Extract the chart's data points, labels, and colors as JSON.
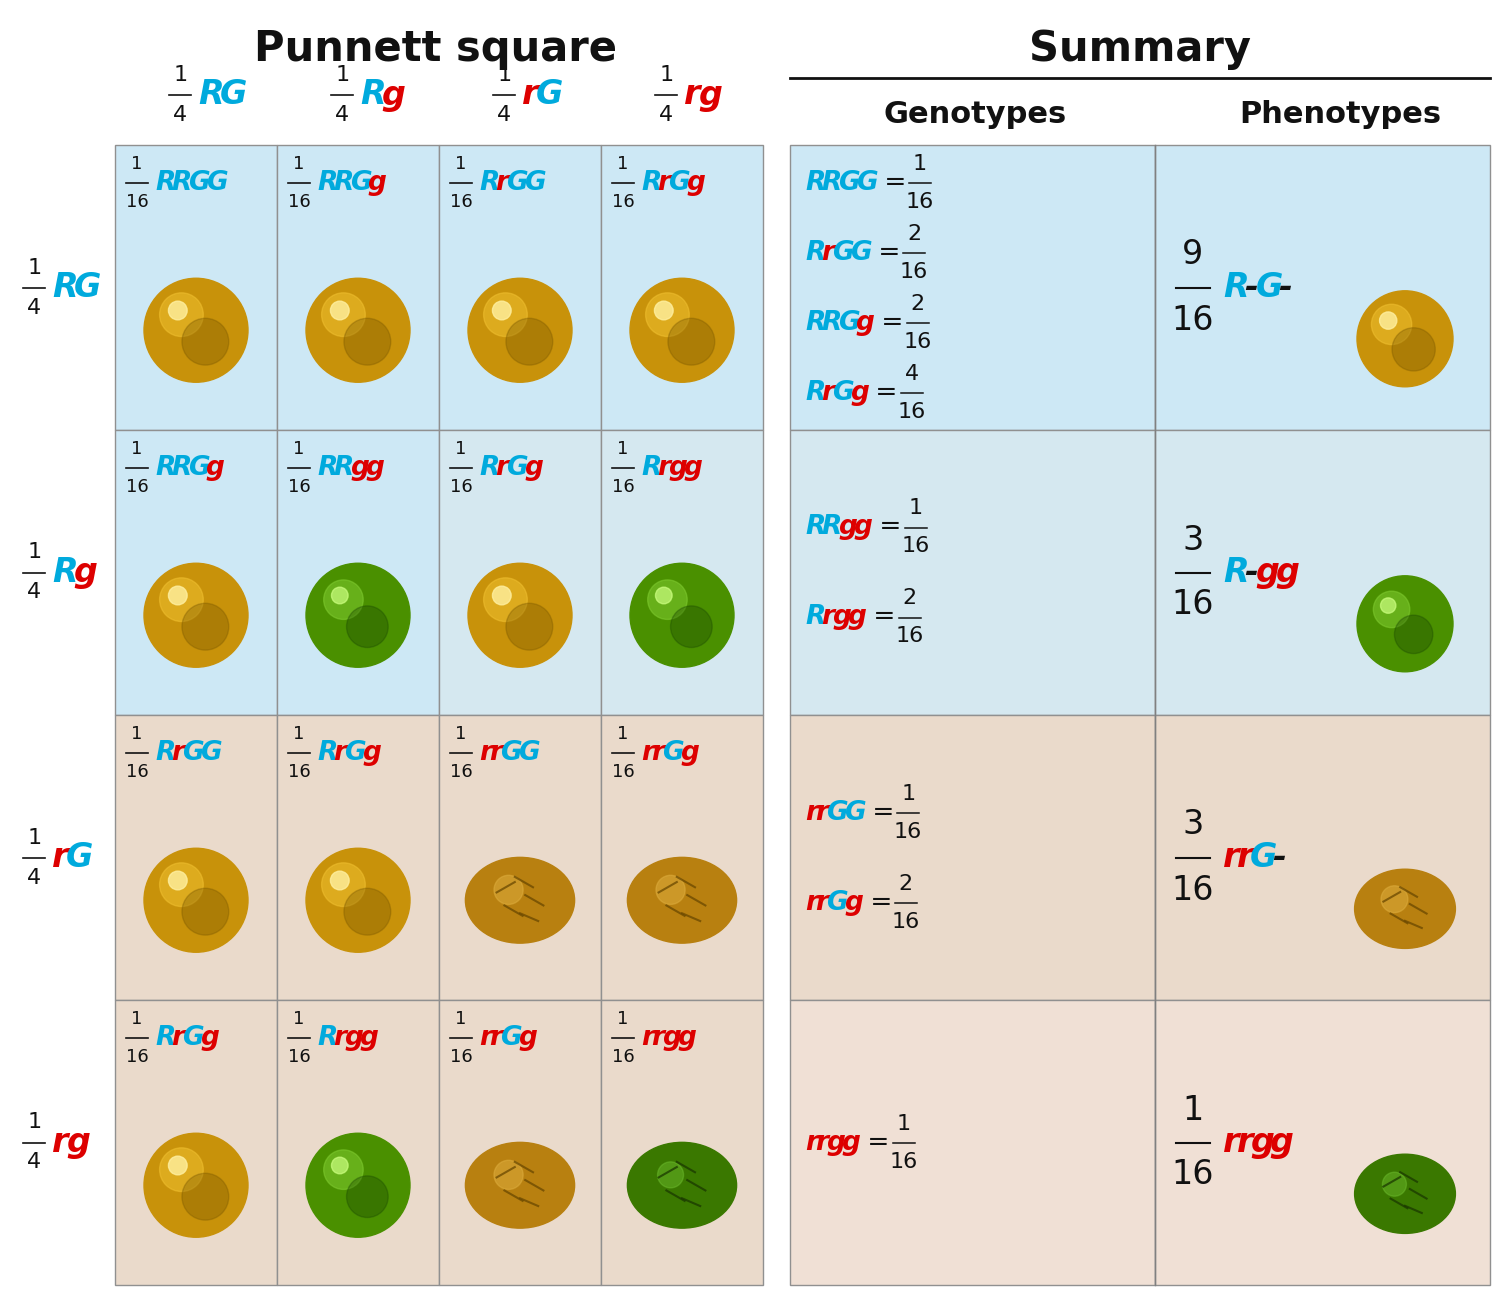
{
  "title_punnett": "Punnett square",
  "title_summary": "Summary",
  "BLUE": "#00aadd",
  "RED": "#dd0000",
  "BLACK": "#111111",
  "cell_bg_blue1": "#cde8f4",
  "cell_bg_blue2": "#d8e8f0",
  "cell_bg_brown1": "#eedad0",
  "cell_bg_brown2": "#f0e0d8",
  "grid_color": "#999999",
  "col_headers": [
    [
      [
        "R",
        "B"
      ],
      [
        "G",
        "B"
      ]
    ],
    [
      [
        "R",
        "B"
      ],
      [
        "g",
        "R"
      ]
    ],
    [
      [
        "r",
        "R"
      ],
      [
        "G",
        "B"
      ]
    ],
    [
      [
        "r",
        "R"
      ],
      [
        "g",
        "R"
      ]
    ]
  ],
  "row_headers": [
    [
      [
        "R",
        "B"
      ],
      [
        "G",
        "B"
      ]
    ],
    [
      [
        "R",
        "B"
      ],
      [
        "g",
        "R"
      ]
    ],
    [
      [
        "r",
        "R"
      ],
      [
        "G",
        "B"
      ]
    ],
    [
      [
        "r",
        "R"
      ],
      [
        "g",
        "R"
      ]
    ]
  ],
  "cells": [
    [
      {
        "geno": [
          [
            "R",
            "B"
          ],
          [
            "R",
            "B"
          ],
          [
            "G",
            "B"
          ],
          [
            "G",
            "B"
          ]
        ],
        "ball": "gold_round"
      },
      {
        "geno": [
          [
            "R",
            "B"
          ],
          [
            "R",
            "B"
          ],
          [
            "G",
            "B"
          ],
          [
            "g",
            "R"
          ]
        ],
        "ball": "gold_round"
      },
      {
        "geno": [
          [
            "R",
            "B"
          ],
          [
            "r",
            "R"
          ],
          [
            "G",
            "B"
          ],
          [
            "G",
            "B"
          ]
        ],
        "ball": "gold_round"
      },
      {
        "geno": [
          [
            "R",
            "B"
          ],
          [
            "r",
            "R"
          ],
          [
            "G",
            "B"
          ],
          [
            "g",
            "R"
          ]
        ],
        "ball": "gold_round"
      }
    ],
    [
      {
        "geno": [
          [
            "R",
            "B"
          ],
          [
            "R",
            "B"
          ],
          [
            "G",
            "B"
          ],
          [
            "g",
            "R"
          ]
        ],
        "ball": "gold_round"
      },
      {
        "geno": [
          [
            "R",
            "B"
          ],
          [
            "R",
            "B"
          ],
          [
            "g",
            "R"
          ],
          [
            "g",
            "R"
          ]
        ],
        "ball": "green_round"
      },
      {
        "geno": [
          [
            "R",
            "B"
          ],
          [
            "r",
            "R"
          ],
          [
            "G",
            "B"
          ],
          [
            "g",
            "R"
          ]
        ],
        "ball": "gold_round"
      },
      {
        "geno": [
          [
            "R",
            "B"
          ],
          [
            "r",
            "R"
          ],
          [
            "g",
            "R"
          ],
          [
            "g",
            "R"
          ]
        ],
        "ball": "green_round"
      }
    ],
    [
      {
        "geno": [
          [
            "R",
            "B"
          ],
          [
            "r",
            "R"
          ],
          [
            "G",
            "B"
          ],
          [
            "G",
            "B"
          ]
        ],
        "ball": "gold_round"
      },
      {
        "geno": [
          [
            "R",
            "B"
          ],
          [
            "r",
            "R"
          ],
          [
            "G",
            "B"
          ],
          [
            "g",
            "R"
          ]
        ],
        "ball": "gold_round"
      },
      {
        "geno": [
          [
            "r",
            "R"
          ],
          [
            "r",
            "R"
          ],
          [
            "G",
            "B"
          ],
          [
            "G",
            "B"
          ]
        ],
        "ball": "gold_wrinkled"
      },
      {
        "geno": [
          [
            "r",
            "R"
          ],
          [
            "r",
            "R"
          ],
          [
            "G",
            "B"
          ],
          [
            "g",
            "R"
          ]
        ],
        "ball": "gold_wrinkled"
      }
    ],
    [
      {
        "geno": [
          [
            "R",
            "B"
          ],
          [
            "r",
            "R"
          ],
          [
            "G",
            "B"
          ],
          [
            "g",
            "R"
          ]
        ],
        "ball": "gold_round"
      },
      {
        "geno": [
          [
            "R",
            "B"
          ],
          [
            "r",
            "R"
          ],
          [
            "g",
            "R"
          ],
          [
            "g",
            "R"
          ]
        ],
        "ball": "green_round"
      },
      {
        "geno": [
          [
            "r",
            "R"
          ],
          [
            "r",
            "R"
          ],
          [
            "G",
            "B"
          ],
          [
            "g",
            "R"
          ]
        ],
        "ball": "gold_wrinkled"
      },
      {
        "geno": [
          [
            "r",
            "R"
          ],
          [
            "r",
            "R"
          ],
          [
            "g",
            "R"
          ],
          [
            "g",
            "R"
          ]
        ],
        "ball": "green_wrinkled"
      }
    ]
  ],
  "sum_geno": [
    [
      {
        "geno": [
          [
            "R",
            "B"
          ],
          [
            "R",
            "B"
          ],
          [
            "G",
            "B"
          ],
          [
            "G",
            "B"
          ]
        ],
        "num": "1",
        "den": "16"
      },
      {
        "geno": [
          [
            "R",
            "B"
          ],
          [
            "r",
            "R"
          ],
          [
            "G",
            "B"
          ],
          [
            "G",
            "B"
          ]
        ],
        "num": "2",
        "den": "16"
      },
      {
        "geno": [
          [
            "R",
            "B"
          ],
          [
            "R",
            "B"
          ],
          [
            "G",
            "B"
          ],
          [
            "g",
            "R"
          ]
        ],
        "num": "2",
        "den": "16"
      },
      {
        "geno": [
          [
            "R",
            "B"
          ],
          [
            "r",
            "R"
          ],
          [
            "G",
            "B"
          ],
          [
            "g",
            "R"
          ]
        ],
        "num": "4",
        "den": "16"
      }
    ],
    [
      {
        "geno": [
          [
            "R",
            "B"
          ],
          [
            "R",
            "B"
          ],
          [
            "g",
            "R"
          ],
          [
            "g",
            "R"
          ]
        ],
        "num": "1",
        "den": "16"
      },
      {
        "geno": [
          [
            "R",
            "B"
          ],
          [
            "r",
            "R"
          ],
          [
            "g",
            "R"
          ],
          [
            "g",
            "R"
          ]
        ],
        "num": "2",
        "den": "16"
      }
    ],
    [
      {
        "geno": [
          [
            "r",
            "R"
          ],
          [
            "r",
            "R"
          ],
          [
            "G",
            "B"
          ],
          [
            "G",
            "B"
          ]
        ],
        "num": "1",
        "den": "16"
      },
      {
        "geno": [
          [
            "r",
            "R"
          ],
          [
            "r",
            "R"
          ],
          [
            "G",
            "B"
          ],
          [
            "g",
            "R"
          ]
        ],
        "num": "2",
        "den": "16"
      }
    ],
    [
      {
        "geno": [
          [
            "r",
            "R"
          ],
          [
            "r",
            "R"
          ],
          [
            "g",
            "R"
          ],
          [
            "g",
            "R"
          ]
        ],
        "num": "1",
        "den": "16"
      }
    ]
  ],
  "sum_pheno": [
    {
      "chars": [
        [
          "R",
          "B"
        ],
        [
          "-",
          "K"
        ],
        [
          "G",
          "B"
        ],
        [
          "-",
          "K"
        ]
      ],
      "num": "9",
      "den": "16",
      "ball": "gold_round"
    },
    {
      "chars": [
        [
          "R",
          "B"
        ],
        [
          "-",
          "K"
        ],
        [
          "g",
          "R"
        ],
        [
          "g",
          "R"
        ]
      ],
      "num": "3",
      "den": "16",
      "ball": "green_round"
    },
    {
      "chars": [
        [
          "r",
          "R"
        ],
        [
          "r",
          "R"
        ],
        [
          "G",
          "B"
        ],
        [
          "-",
          "K"
        ]
      ],
      "num": "3",
      "den": "16",
      "ball": "gold_wrinkled"
    },
    {
      "chars": [
        [
          "r",
          "R"
        ],
        [
          "r",
          "R"
        ],
        [
          "g",
          "R"
        ],
        [
          "g",
          "R"
        ]
      ],
      "num": "1",
      "den": "16",
      "ball": "green_wrinkled"
    }
  ]
}
